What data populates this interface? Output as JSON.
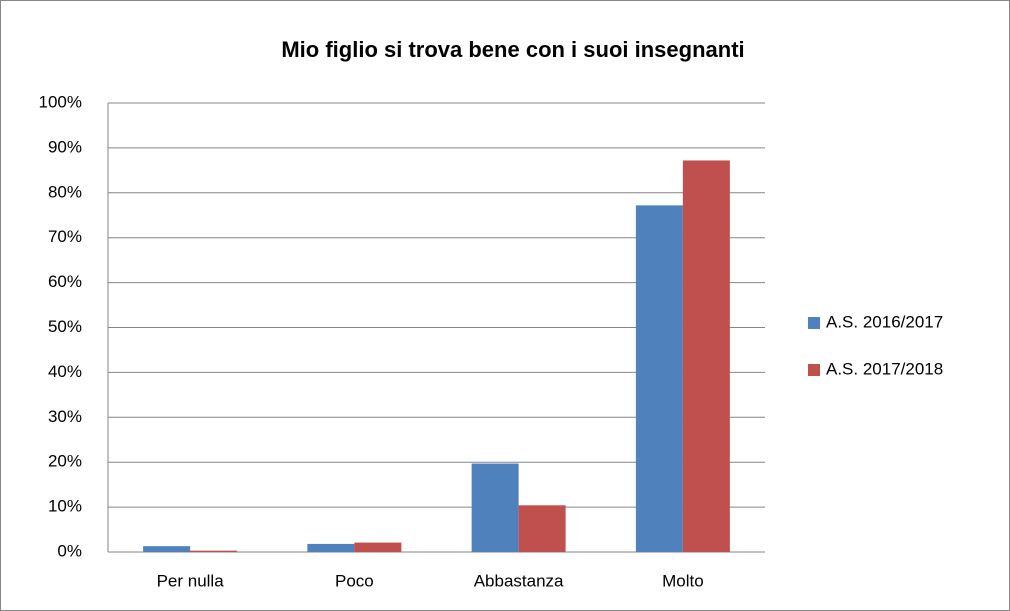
{
  "chart_data": {
    "type": "bar",
    "title": "Mio figlio si trova bene con i suoi insegnanti",
    "categories": [
      "Per nulla",
      "Poco",
      "Abbastanza",
      "Molto"
    ],
    "series": [
      {
        "name": "A.S. 2016/2017",
        "color": "#4f81bd",
        "values": [
          1.3,
          1.8,
          19.7,
          77.2
        ]
      },
      {
        "name": "A.S. 2017/2018",
        "color": "#c0504d",
        "values": [
          0.3,
          2.1,
          10.4,
          87.2
        ]
      }
    ],
    "ylim": [
      0,
      100
    ],
    "yticks": [
      {
        "value": 0,
        "label": "0%"
      },
      {
        "value": 10,
        "label": "10%"
      },
      {
        "value": 20,
        "label": "20%"
      },
      {
        "value": 30,
        "label": "30%"
      },
      {
        "value": 40,
        "label": "40%"
      },
      {
        "value": 50,
        "label": "50%"
      },
      {
        "value": 60,
        "label": "60%"
      },
      {
        "value": 70,
        "label": "70%"
      },
      {
        "value": 80,
        "label": "80%"
      },
      {
        "value": 90,
        "label": "90%"
      },
      {
        "value": 100,
        "label": "100%"
      }
    ],
    "grid": true,
    "legend": "right"
  }
}
